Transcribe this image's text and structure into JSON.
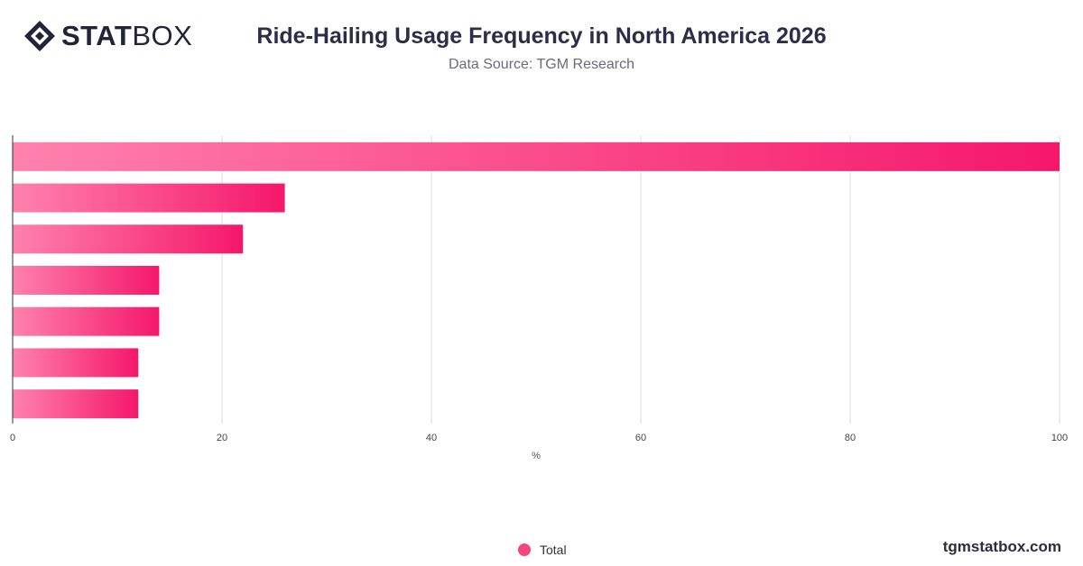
{
  "brand": {
    "logo_bold": "STAT",
    "logo_light": "BOX",
    "site": "tgmstatbox.com"
  },
  "title": "Ride-Hailing Usage Frequency in North America 2026",
  "subtitle": "Data Source: TGM Research",
  "chart_data": {
    "type": "bar",
    "orientation": "horizontal",
    "categories": [
      "",
      "",
      "",
      "",
      "",
      "",
      ""
    ],
    "series": [
      {
        "name": "Total",
        "values": [
          100,
          26,
          22,
          14,
          14,
          12,
          12
        ]
      }
    ],
    "xlabel": "%",
    "ylabel": "",
    "xlim": [
      0,
      100
    ],
    "xticks": [
      0,
      20,
      40,
      60,
      80,
      100
    ],
    "grid": true,
    "legend": "bottom-center",
    "colors": {
      "bar_start": "#ff82ad",
      "bar_end": "#f5176a",
      "legend": "#f2467d"
    }
  }
}
